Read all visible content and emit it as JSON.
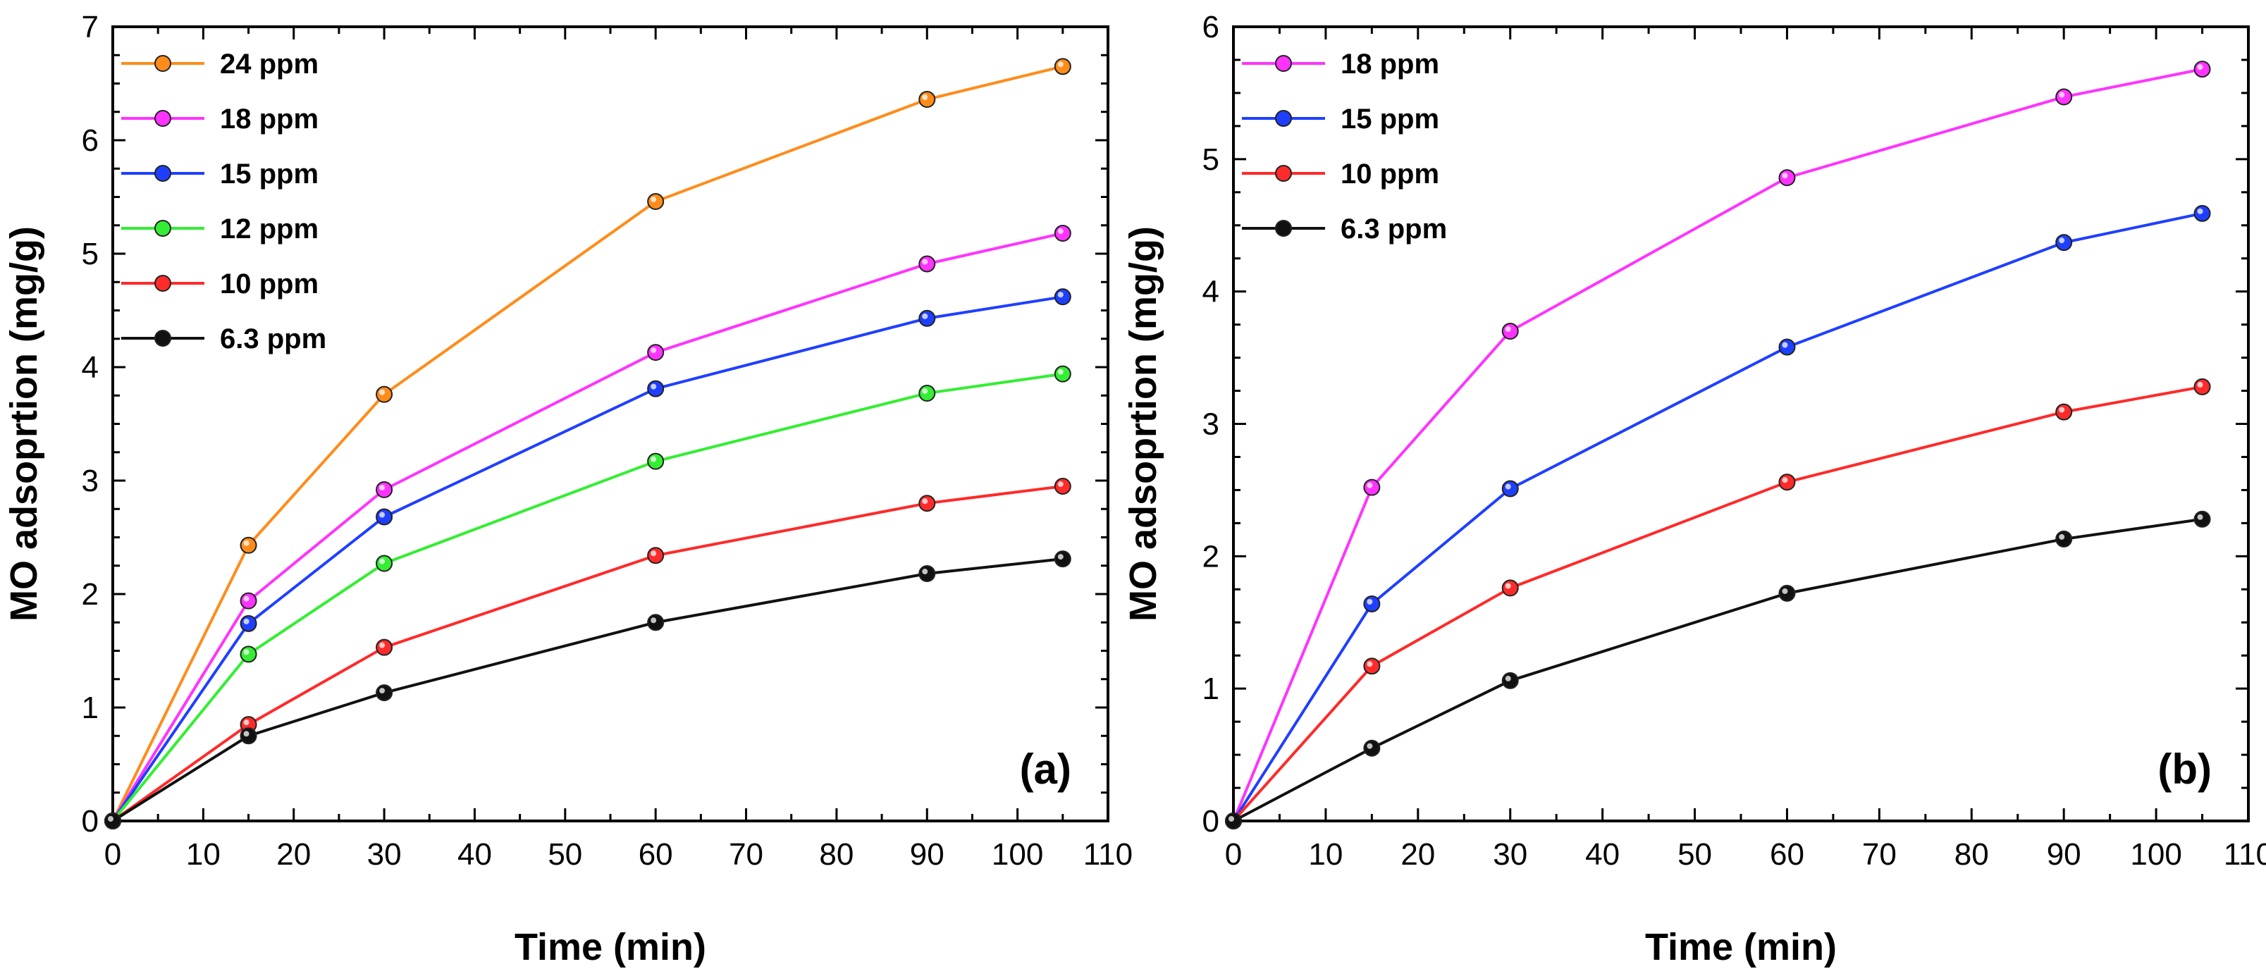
{
  "chart_data": [
    {
      "type": "line",
      "panel_label": "(a)",
      "xlabel": "Time (min)",
      "ylabel": "MO adsoprtion (mg/g)",
      "xlim": [
        0,
        110
      ],
      "ylim": [
        0,
        7
      ],
      "xticks": [
        0,
        10,
        20,
        30,
        40,
        50,
        60,
        70,
        80,
        90,
        100,
        110
      ],
      "yticks": [
        0,
        1,
        2,
        3,
        4,
        5,
        6,
        7
      ],
      "grid": false,
      "legend_position": "top-left",
      "x": [
        0,
        15,
        30,
        60,
        90,
        105
      ],
      "series": [
        {
          "name": "24 ppm",
          "color": "#ff8c1a",
          "values": [
            0,
            2.43,
            3.76,
            5.46,
            6.36,
            6.65
          ]
        },
        {
          "name": "18 ppm",
          "color": "#ff33ff",
          "values": [
            0,
            1.94,
            2.92,
            4.13,
            4.91,
            5.18
          ]
        },
        {
          "name": "15 ppm",
          "color": "#1f3fff",
          "values": [
            0,
            1.74,
            2.68,
            3.81,
            4.43,
            4.62
          ]
        },
        {
          "name": "12 ppm",
          "color": "#33ee33",
          "values": [
            0,
            1.47,
            2.27,
            3.17,
            3.77,
            3.94
          ]
        },
        {
          "name": "10 ppm",
          "color": "#ff2a2a",
          "values": [
            0,
            0.85,
            1.53,
            2.34,
            2.8,
            2.95
          ]
        },
        {
          "name": "6.3 ppm",
          "color": "#111111",
          "values": [
            0,
            0.75,
            1.13,
            1.75,
            2.18,
            2.31
          ]
        }
      ]
    },
    {
      "type": "line",
      "panel_label": "(b)",
      "xlabel": "Time (min)",
      "ylabel": "MO adsoprtion (mg/g)",
      "xlim": [
        0,
        110
      ],
      "ylim": [
        0,
        6
      ],
      "xticks": [
        0,
        10,
        20,
        30,
        40,
        50,
        60,
        70,
        80,
        90,
        100,
        110
      ],
      "yticks": [
        0,
        1,
        2,
        3,
        4,
        5,
        6
      ],
      "grid": false,
      "legend_position": "top-left",
      "x": [
        0,
        15,
        30,
        60,
        90,
        105
      ],
      "series": [
        {
          "name": "18 ppm",
          "color": "#ff33ff",
          "values": [
            0,
            2.52,
            3.7,
            4.86,
            5.47,
            5.68
          ]
        },
        {
          "name": "15 ppm",
          "color": "#1f3fff",
          "values": [
            0,
            1.64,
            2.51,
            3.58,
            4.37,
            4.59
          ]
        },
        {
          "name": "10 ppm",
          "color": "#ff2a2a",
          "values": [
            0,
            1.17,
            1.76,
            2.56,
            3.09,
            3.28
          ]
        },
        {
          "name": "6.3 ppm",
          "color": "#111111",
          "values": [
            0,
            0.55,
            1.06,
            1.72,
            2.13,
            2.28
          ]
        }
      ]
    }
  ]
}
